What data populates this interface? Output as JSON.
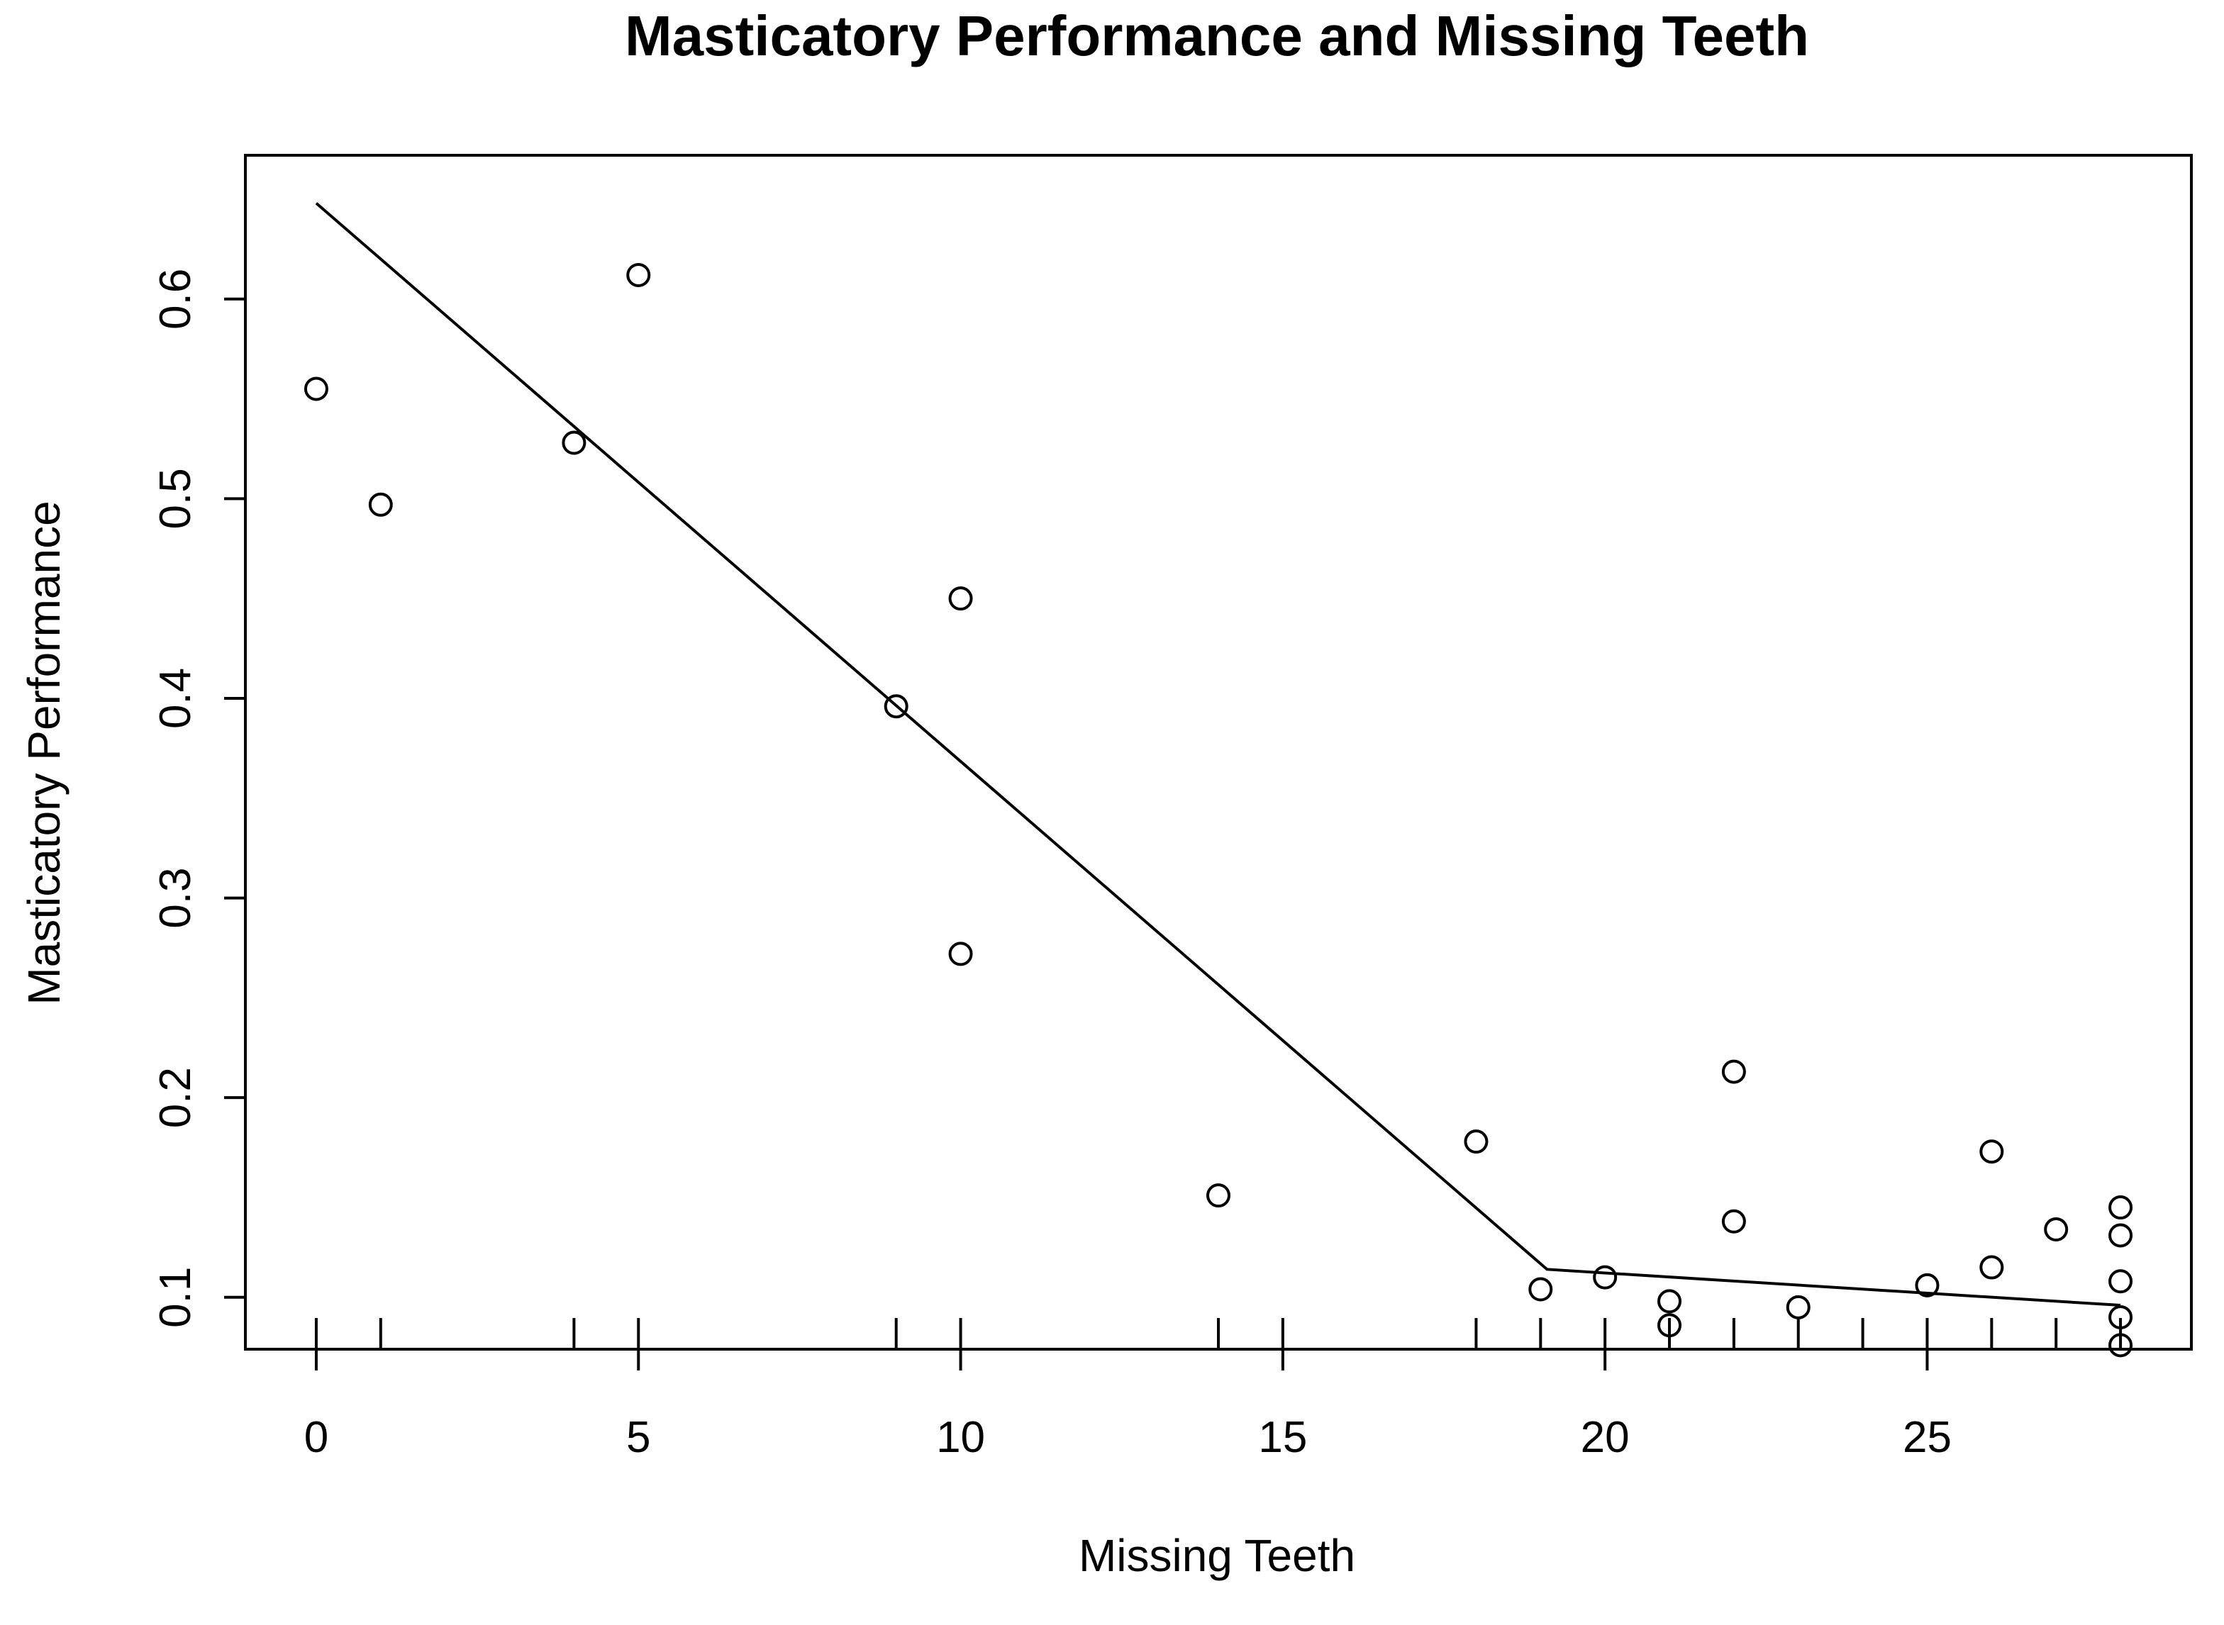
{
  "chart_data": {
    "type": "scatter",
    "title": "Masticatory Performance and Missing Teeth",
    "xlabel": "Missing Teeth",
    "ylabel": "Masticatory Performance",
    "xlim": [
      -1.1,
      29.1
    ],
    "ylim": [
      0.074,
      0.672
    ],
    "xticks": [
      0,
      5,
      10,
      15,
      20,
      25
    ],
    "yticks": [
      0.1,
      0.2,
      0.3,
      0.4,
      0.5,
      0.6
    ],
    "xtick_labels": [
      "0",
      "5",
      "10",
      "15",
      "20",
      "25"
    ],
    "ytick_labels": [
      "0.1",
      "0.2",
      "0.3",
      "0.4",
      "0.5",
      "0.6"
    ],
    "grid": false,
    "legend": false,
    "points": [
      {
        "x": 0,
        "y": 0.555
      },
      {
        "x": 1,
        "y": 0.497
      },
      {
        "x": 4,
        "y": 0.528
      },
      {
        "x": 5,
        "y": 0.612
      },
      {
        "x": 9,
        "y": 0.396
      },
      {
        "x": 10,
        "y": 0.45
      },
      {
        "x": 10,
        "y": 0.272
      },
      {
        "x": 14,
        "y": 0.151
      },
      {
        "x": 18,
        "y": 0.178
      },
      {
        "x": 19,
        "y": 0.104
      },
      {
        "x": 20,
        "y": 0.11
      },
      {
        "x": 21,
        "y": 0.098
      },
      {
        "x": 21,
        "y": 0.086
      },
      {
        "x": 22,
        "y": 0.213
      },
      {
        "x": 22,
        "y": 0.138
      },
      {
        "x": 23,
        "y": 0.095
      },
      {
        "x": 25,
        "y": 0.106
      },
      {
        "x": 26,
        "y": 0.173
      },
      {
        "x": 26,
        "y": 0.115
      },
      {
        "x": 27,
        "y": 0.134
      },
      {
        "x": 28,
        "y": 0.145
      },
      {
        "x": 28,
        "y": 0.131
      },
      {
        "x": 28,
        "y": 0.108
      },
      {
        "x": 28,
        "y": 0.09
      },
      {
        "x": 28,
        "y": 0.076
      }
    ],
    "fit_line": [
      {
        "x": 0,
        "y": 0.648
      },
      {
        "x": 19.1,
        "y": 0.114
      },
      {
        "x": 28,
        "y": 0.096
      }
    ],
    "rug_x": [
      0,
      1,
      4,
      5,
      9,
      10,
      14,
      15,
      18,
      19,
      20,
      21,
      22,
      23,
      24,
      25,
      26,
      27,
      28
    ]
  }
}
